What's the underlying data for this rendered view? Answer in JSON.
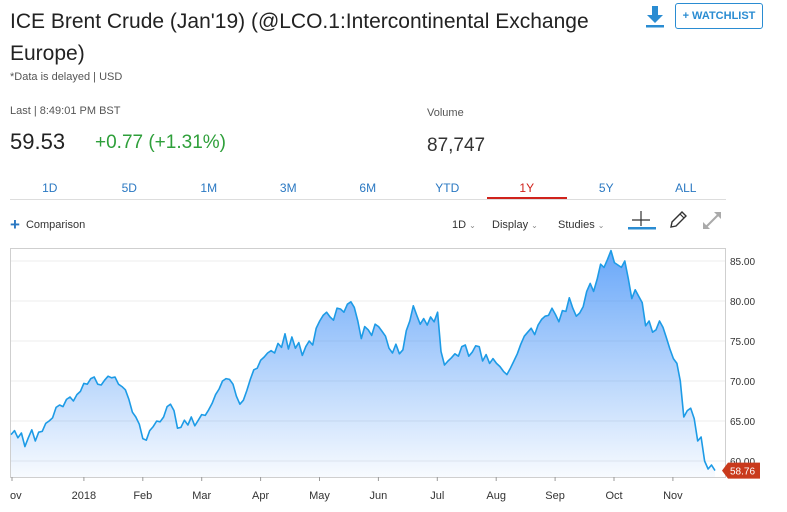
{
  "header": {
    "title": "ICE Brent Crude (Jan'19) (@LCO.1:Intercontinental Exchange Europe)",
    "note": "*Data is delayed | USD",
    "watchlist_label": "+ WATCHLIST"
  },
  "quote": {
    "last_label": "Last | 8:49:01 PM BST",
    "price": "59.53",
    "change": "+0.77 (+1.31%)",
    "volume_label": "Volume",
    "volume": "87,747"
  },
  "tabs": [
    "1D",
    "5D",
    "1M",
    "3M",
    "6M",
    "YTD",
    "1Y",
    "5Y",
    "ALL"
  ],
  "active_tab": "1Y",
  "toolbar": {
    "comparison": "Comparison",
    "interval": "1D",
    "display": "Display",
    "studies": "Studies"
  },
  "colors": {
    "accent": "#2a78c2",
    "up": "#2e9f3a",
    "active_tab": "#d0231c",
    "line": "#1d9be6",
    "last_badge": "#c93a1c"
  },
  "chart_data": {
    "type": "area",
    "ylim": [
      58,
      86.5
    ],
    "yticks": [
      "85.00",
      "80.00",
      "75.00",
      "70.00",
      "65.00",
      "60.00"
    ],
    "xticks": [
      "ov",
      "2018",
      "Feb",
      "Mar",
      "Apr",
      "May",
      "Jun",
      "Jul",
      "Aug",
      "Sep",
      "Oct",
      "Nov"
    ],
    "last_value_label": "58.76",
    "values": [
      63.3,
      63.8,
      62.9,
      63.5,
      61.8,
      62.9,
      63.9,
      62.5,
      63.6,
      63.7,
      64.7,
      65.0,
      65.4,
      66.7,
      67.0,
      66.8,
      67.7,
      68.0,
      67.5,
      68.3,
      68.7,
      69.7,
      69.6,
      70.3,
      70.5,
      69.6,
      69.5,
      70.1,
      70.6,
      70.4,
      70.5,
      69.6,
      69.3,
      68.9,
      67.7,
      66.1,
      65.5,
      64.6,
      62.8,
      62.6,
      63.8,
      64.3,
      65.0,
      64.9,
      65.5,
      66.8,
      67.1,
      66.3,
      64.1,
      64.2,
      65.1,
      64.5,
      65.5,
      64.4,
      65.1,
      65.8,
      65.7,
      66.4,
      67.2,
      68.3,
      69.0,
      70.0,
      70.3,
      70.2,
      69.6,
      68.1,
      67.1,
      67.6,
      68.8,
      70.2,
      71.4,
      71.6,
      72.6,
      73.0,
      73.5,
      73.8,
      73.5,
      74.7,
      74.2,
      75.9,
      74.0,
      75.5,
      74.1,
      74.8,
      73.2,
      74.3,
      75.0,
      74.5,
      76.6,
      77.5,
      78.2,
      78.6,
      78.0,
      77.6,
      79.1,
      79.0,
      78.6,
      79.6,
      79.9,
      79.2,
      77.5,
      75.3,
      76.8,
      76.4,
      75.7,
      77.1,
      76.8,
      76.2,
      75.6,
      74.1,
      73.5,
      74.6,
      73.4,
      73.9,
      76.3,
      77.5,
      79.4,
      78.2,
      77.1,
      77.8,
      77.0,
      78.0,
      77.4,
      78.6,
      73.7,
      72.0,
      72.5,
      72.9,
      73.4,
      73.1,
      74.3,
      74.5,
      73.1,
      73.6,
      74.4,
      74.3,
      72.5,
      73.3,
      72.2,
      72.8,
      72.2,
      71.8,
      71.2,
      70.8,
      71.6,
      72.5,
      73.4,
      74.6,
      75.6,
      76.1,
      76.6,
      75.8,
      77.0,
      77.7,
      78.1,
      78.2,
      79.1,
      78.3,
      77.4,
      78.8,
      78.7,
      80.4,
      79.1,
      78.1,
      78.5,
      79.3,
      81.2,
      82.2,
      81.2,
      82.7,
      84.6,
      84.2,
      85.2,
      86.3,
      84.8,
      84.5,
      84.2,
      85.0,
      82.8,
      80.3,
      81.4,
      80.6,
      79.8,
      76.9,
      77.5,
      76.1,
      76.4,
      77.5,
      76.7,
      75.4,
      74.0,
      72.8,
      72.2,
      70.0,
      65.5,
      66.3,
      66.6,
      65.3,
      62.5,
      63.0,
      60.0,
      59.0,
      59.5,
      58.8
    ]
  }
}
